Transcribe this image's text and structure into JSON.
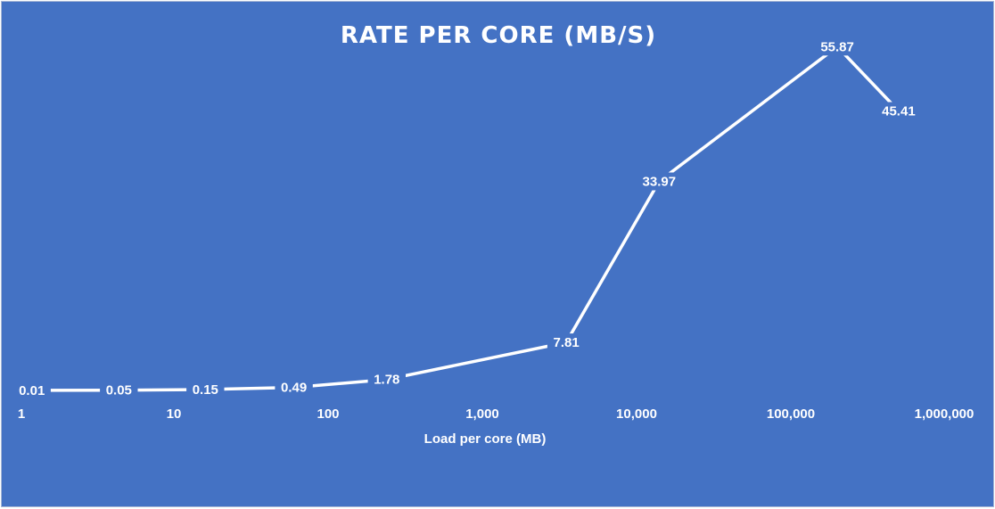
{
  "chart_data": {
    "type": "line",
    "title": "RATE PER CORE (MB/S)",
    "xlabel": "Load per core (MB)",
    "ylabel": "",
    "x_scale": "log",
    "xlim": [
      1,
      1000000
    ],
    "ylim": [
      0,
      60
    ],
    "grid": false,
    "legend": "none",
    "x_tick_labels": [
      "1",
      "10",
      "100",
      "1,000",
      "10,000",
      "100,000",
      "1,000,000"
    ],
    "x_tick_values": [
      1,
      10,
      100,
      1000,
      10000,
      100000,
      1000000
    ],
    "series": [
      {
        "x": [
          1.2,
          4.4,
          16,
          60,
          240,
          3500,
          14000,
          200000,
          500000
        ],
        "values": [
          0.01,
          0.05,
          0.15,
          0.49,
          1.78,
          7.81,
          33.97,
          55.87,
          45.41
        ],
        "labels": [
          "0.01",
          "0.05",
          "0.15",
          "0.49",
          "1.78",
          "7.81",
          "33.97",
          "55.87",
          "45.41"
        ]
      }
    ],
    "colors": {
      "background": "#4472c4",
      "line": "#ffffff",
      "text": "#ffffff"
    }
  }
}
